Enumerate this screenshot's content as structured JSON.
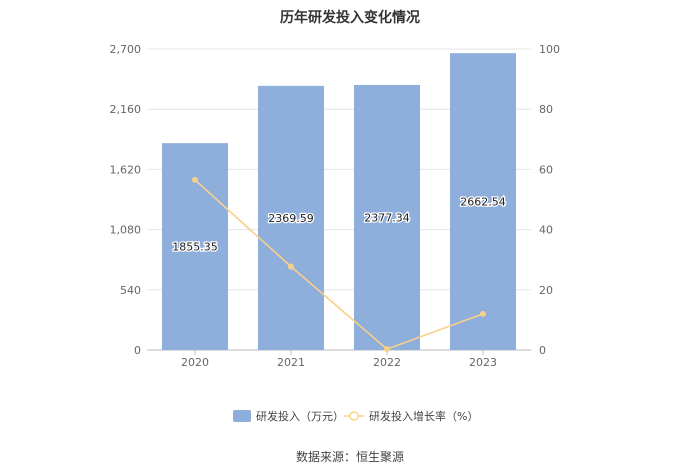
{
  "chart_data": {
    "type": "bar",
    "title": "历年研发投入变化情况",
    "categories": [
      "2020",
      "2021",
      "2022",
      "2023"
    ],
    "series": [
      {
        "name": "研发投入（万元）",
        "type": "bar",
        "axis": "left",
        "values": [
          1855.35,
          2369.59,
          2377.34,
          2662.54
        ],
        "labels": [
          "1855.35",
          "2369.59",
          "2377.34",
          "2662.54"
        ],
        "color": "#8eaedc"
      },
      {
        "name": "研发投入增长率（%）",
        "type": "line",
        "axis": "right",
        "values": [
          56.5,
          27.7,
          0.3,
          12.0
        ],
        "color": "#f9d08a"
      }
    ],
    "left_axis": {
      "ylim": [
        0,
        2700
      ],
      "ticks": [
        "0",
        "540",
        "1,080",
        "1,620",
        "2,160",
        "2,700"
      ]
    },
    "right_axis": {
      "ylim": [
        0,
        100
      ],
      "ticks": [
        "0",
        "20",
        "40",
        "60",
        "80",
        "100"
      ]
    },
    "grid": true,
    "legend_position": "bottom"
  },
  "source_text": "数据来源：恒生聚源"
}
